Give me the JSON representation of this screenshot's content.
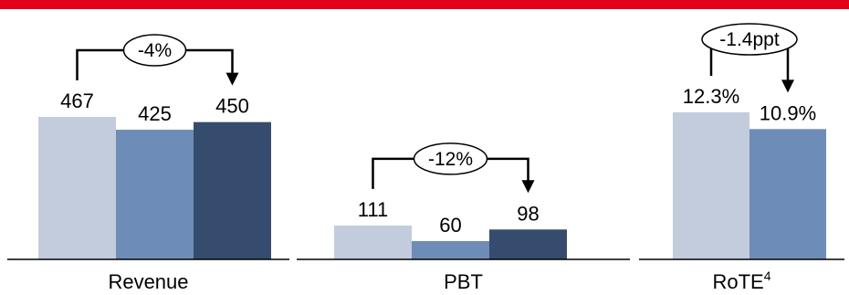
{
  "colors": {
    "top_bar": "#E2001A",
    "period_1": "#C3CCDD",
    "period_2": "#6E8CB8",
    "period_3": "#364C6E",
    "axis": "#000000"
  },
  "chart_data": [
    {
      "type": "bar",
      "category": "Revenue",
      "series": [
        {
          "values": [
            467
          ]
        },
        {
          "values": [
            425
          ]
        },
        {
          "values": [
            450
          ]
        }
      ],
      "data_labels": [
        "467",
        "425",
        "450"
      ],
      "annotation": "-4%"
    },
    {
      "type": "bar",
      "category": "PBT",
      "series": [
        {
          "values": [
            111
          ]
        },
        {
          "values": [
            60
          ]
        },
        {
          "values": [
            98
          ]
        }
      ],
      "data_labels": [
        "111",
        "60",
        "98"
      ],
      "annotation": "-12%"
    },
    {
      "type": "bar",
      "category": "RoTE",
      "category_superscript": "4",
      "series": [
        {
          "values": [
            12.3
          ]
        },
        {
          "values": [
            10.9
          ]
        }
      ],
      "data_labels": [
        "12.3%",
        "10.9%"
      ],
      "annotation": "-1.4ppt"
    }
  ]
}
